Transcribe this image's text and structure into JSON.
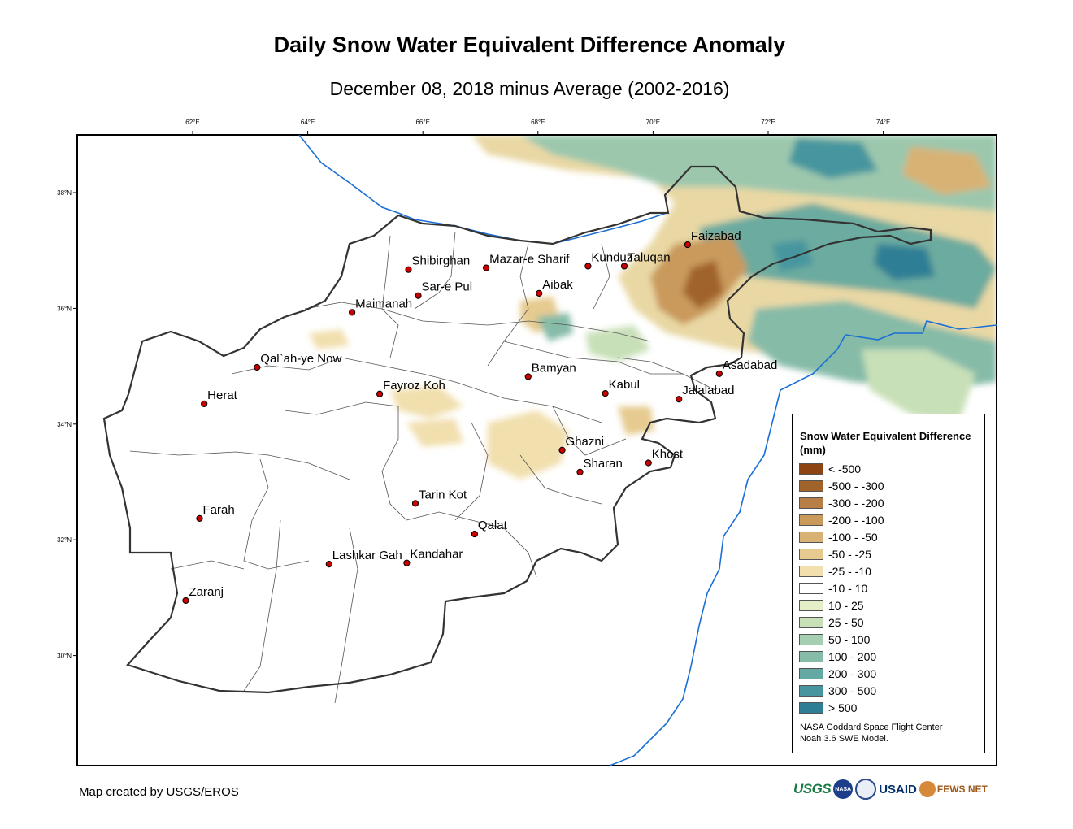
{
  "header": {
    "title": "Daily Snow Water Equivalent Difference Anomaly",
    "subtitle": "December 08, 2018 minus Average (2002-2016)"
  },
  "map": {
    "lon_ticks": [
      "62°E",
      "64°E",
      "66°E",
      "68°E",
      "70°E",
      "72°E",
      "74°E"
    ],
    "lat_ticks": [
      "38°N",
      "36°N",
      "34°N",
      "32°N",
      "30°N"
    ],
    "cities": [
      {
        "name": "Faizabad",
        "lon": 70.6,
        "lat": 37.1
      },
      {
        "name": "Shibirghan",
        "lon": 65.75,
        "lat": 36.67
      },
      {
        "name": "Mazar-e Sharif",
        "lon": 67.1,
        "lat": 36.7
      },
      {
        "name": "Kunduz",
        "lon": 68.87,
        "lat": 36.73
      },
      {
        "name": "Taluqan",
        "lon": 69.5,
        "lat": 36.73
      },
      {
        "name": "Sar-e Pul",
        "lon": 65.92,
        "lat": 36.22
      },
      {
        "name": "Aibak",
        "lon": 68.02,
        "lat": 36.26
      },
      {
        "name": "Maimanah",
        "lon": 64.77,
        "lat": 35.93
      },
      {
        "name": "Qal`ah-ye Now",
        "lon": 63.12,
        "lat": 34.98
      },
      {
        "name": "Asadabad",
        "lon": 71.15,
        "lat": 34.87
      },
      {
        "name": "Bamyan",
        "lon": 67.83,
        "lat": 34.82
      },
      {
        "name": "Kabul",
        "lon": 69.17,
        "lat": 34.53
      },
      {
        "name": "Fayroz Koh",
        "lon": 65.25,
        "lat": 34.52
      },
      {
        "name": "Herat",
        "lon": 62.2,
        "lat": 34.35
      },
      {
        "name": "Jalalabad",
        "lon": 70.45,
        "lat": 34.43
      },
      {
        "name": "Ghazni",
        "lon": 68.42,
        "lat": 33.55
      },
      {
        "name": "Khost",
        "lon": 69.92,
        "lat": 33.33
      },
      {
        "name": "Sharan",
        "lon": 68.73,
        "lat": 33.17
      },
      {
        "name": "Tarin Kot",
        "lon": 65.87,
        "lat": 32.63
      },
      {
        "name": "Farah",
        "lon": 62.12,
        "lat": 32.37
      },
      {
        "name": "Qalat",
        "lon": 66.9,
        "lat": 32.1
      },
      {
        "name": "Lashkar Gah",
        "lon": 64.37,
        "lat": 31.58
      },
      {
        "name": "Kandahar",
        "lon": 65.72,
        "lat": 31.6
      },
      {
        "name": "Zaranj",
        "lon": 61.88,
        "lat": 30.95
      }
    ],
    "colors": {
      "border": "#333333",
      "province": "#555555",
      "river": "#1a6fd6",
      "city_marker": "#cc0000"
    }
  },
  "legend": {
    "title": "Snow Water Equivalent Difference (mm)",
    "items": [
      {
        "label": "< -500",
        "color": "#8c4513"
      },
      {
        "label": "-500 - -300",
        "color": "#a0642b"
      },
      {
        "label": "-300 - -200",
        "color": "#b77f45"
      },
      {
        "label": "-200 - -100",
        "color": "#c99a5c"
      },
      {
        "label": "-100 - -50",
        "color": "#d8b274"
      },
      {
        "label": "-50 - -25",
        "color": "#e6ca8f"
      },
      {
        "label": "-25 - -10",
        "color": "#f1dfae"
      },
      {
        "label": "-10 - 10",
        "color": "#ffffff"
      },
      {
        "label": "10 - 25",
        "color": "#e4efc8"
      },
      {
        "label": "25 - 50",
        "color": "#c8e0b8"
      },
      {
        "label": "50 - 100",
        "color": "#a6ceb1"
      },
      {
        "label": "100 - 200",
        "color": "#86bba8"
      },
      {
        "label": "200 - 300",
        "color": "#66a8a3"
      },
      {
        "label": "300 - 500",
        "color": "#47969f"
      },
      {
        "label": "> 500",
        "color": "#2e7f95"
      }
    ],
    "credit_line1": "NASA Goddard Space Flight Center",
    "credit_line2": "Noah 3.6 SWE Model."
  },
  "footer": {
    "credit": "Map created by USGS/EROS",
    "logo_usgs": "USGS",
    "logo_nasa": "NASA",
    "logo_usaid": "USAID",
    "logo_fews": "FEWS NET"
  }
}
